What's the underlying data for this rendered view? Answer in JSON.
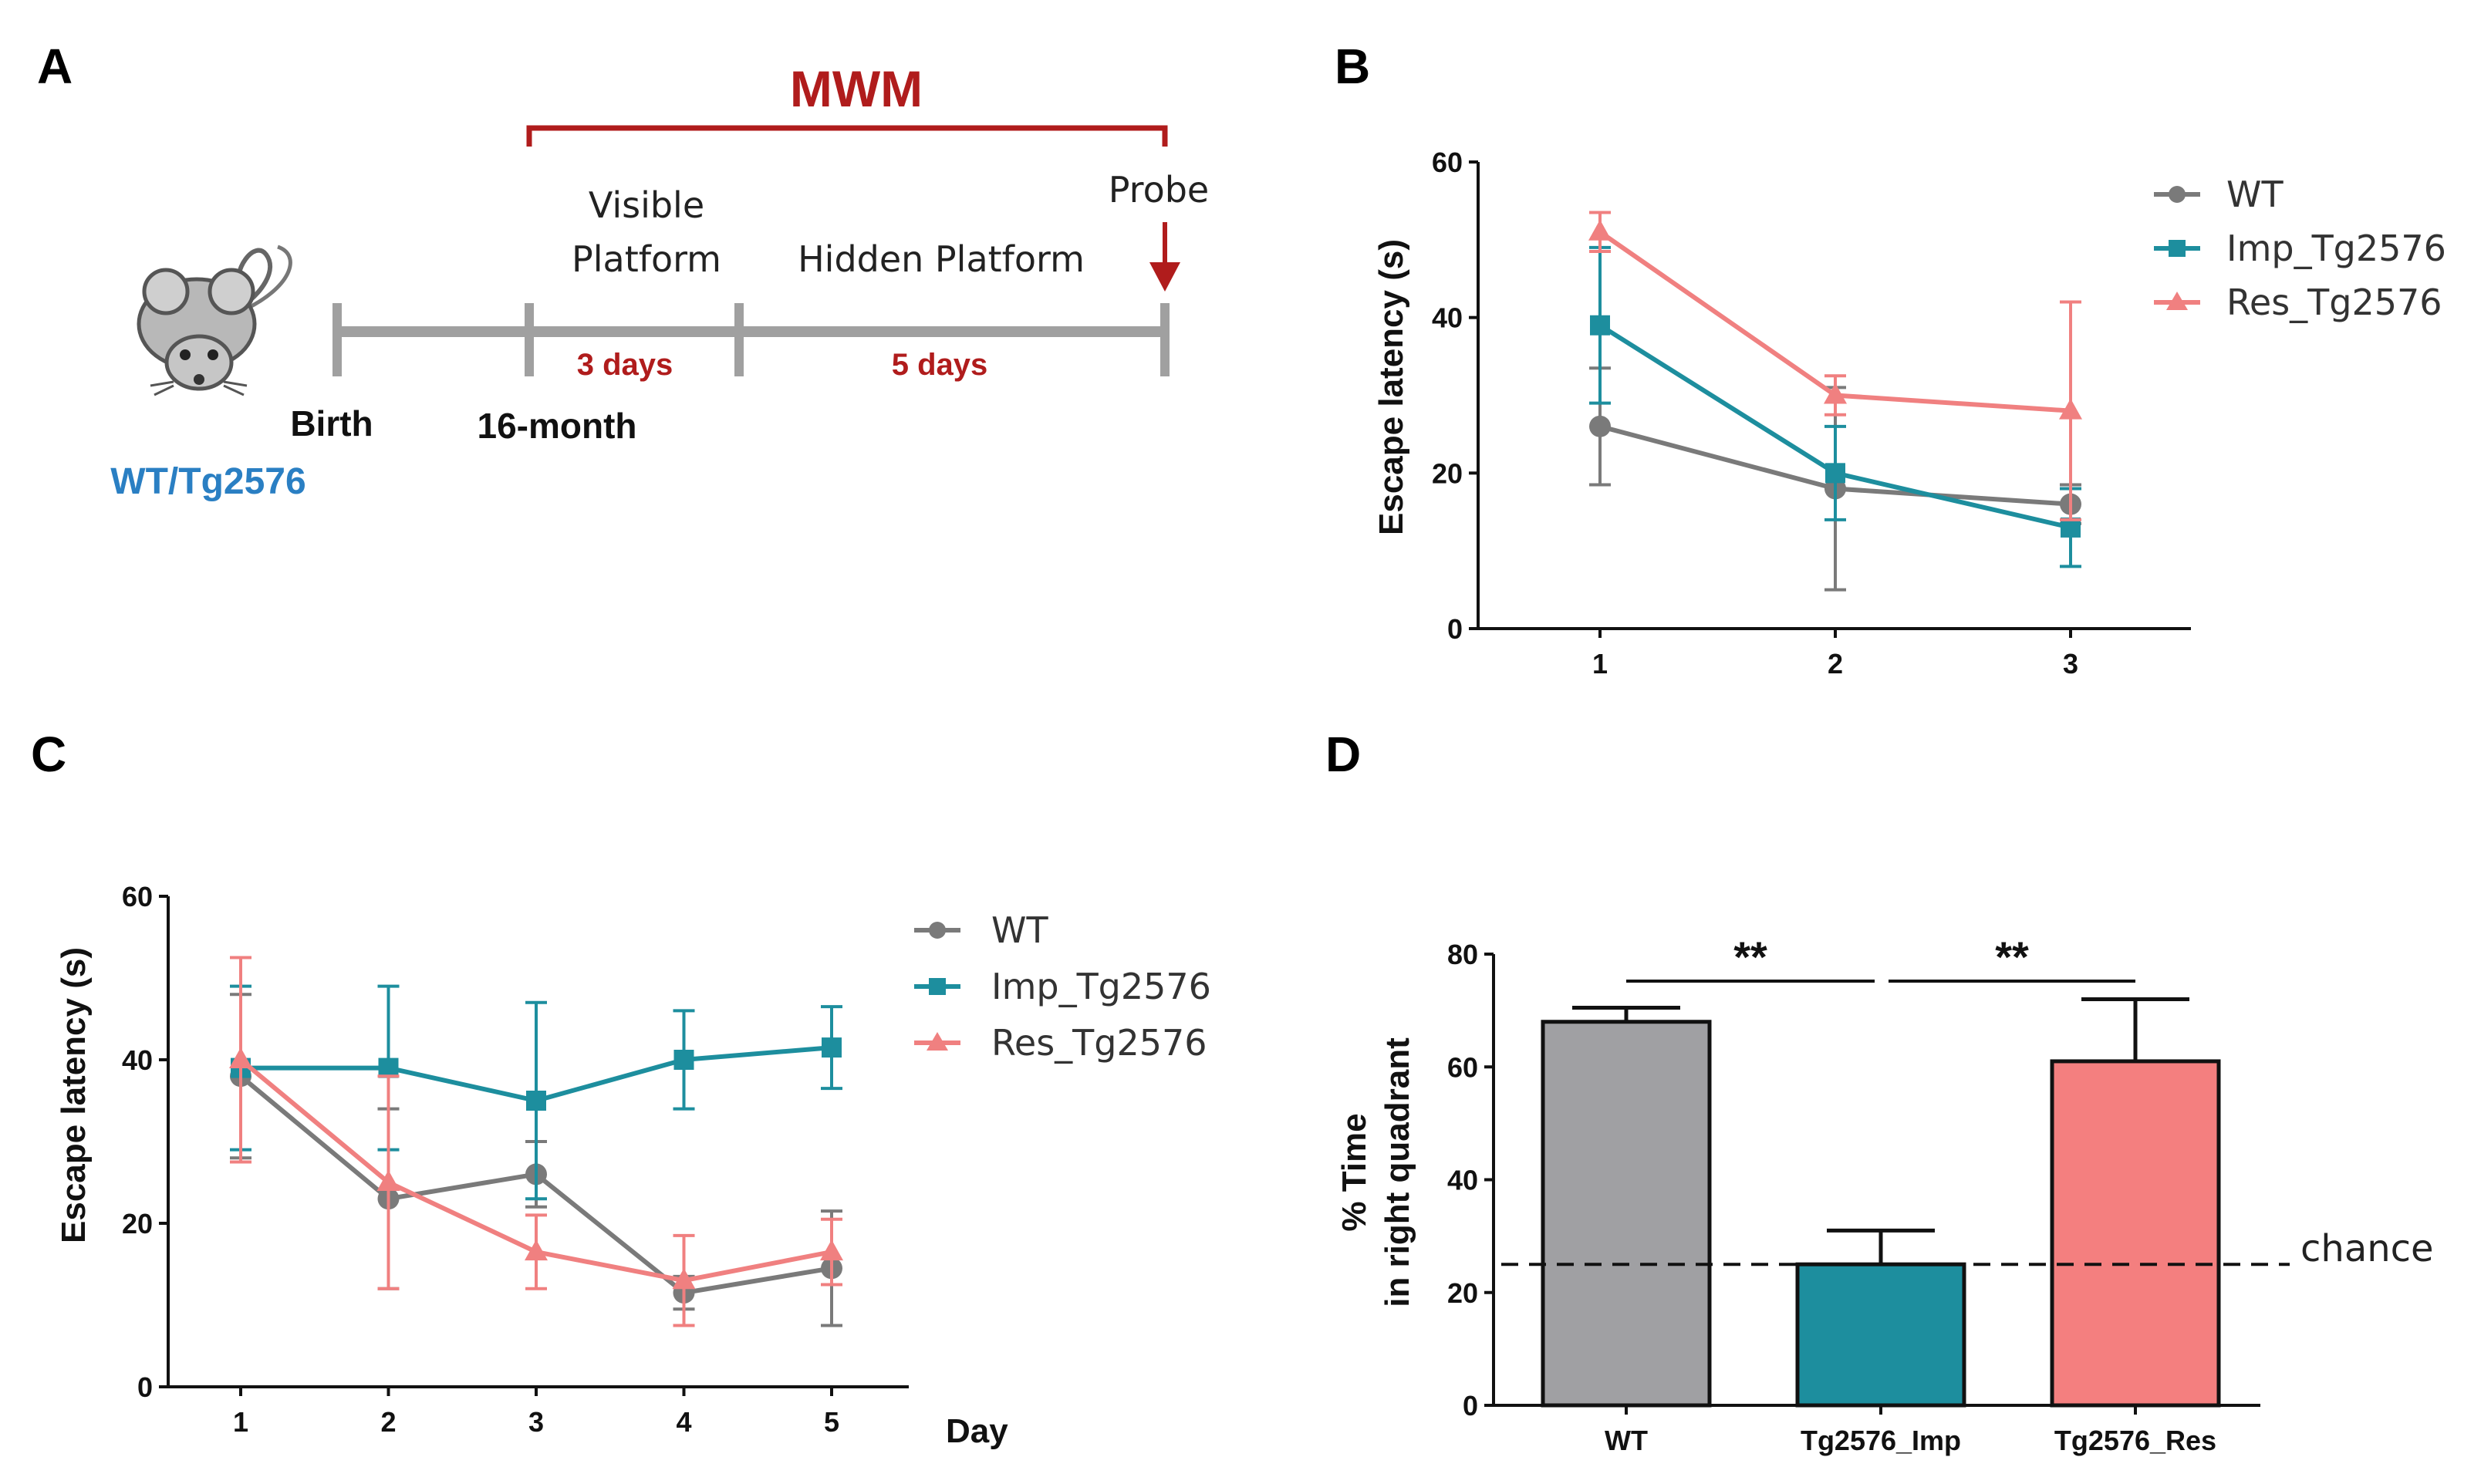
{
  "panels": {
    "A": {
      "letter": "A",
      "title": "MWM",
      "group_label": "WT/Tg2576",
      "birth_label": "Birth",
      "age_label": "16-month",
      "visible_label_1": "Visible",
      "visible_label_2": "Platform",
      "hidden_label": "Hidden Platform",
      "probe_label": "Probe",
      "visible_duration": "3 days",
      "hidden_duration": "5 days",
      "colors": {
        "timeline": "#a0a0a0",
        "accent": "#b01c1c",
        "group": "#2a7fc3"
      },
      "icon": "mouse-icon"
    },
    "B": {
      "letter": "B"
    },
    "C": {
      "letter": "C"
    },
    "D": {
      "letter": "D"
    }
  },
  "chart_data": [
    {
      "id": "B",
      "type": "line",
      "x": [
        1,
        2,
        3
      ],
      "xlabel": "",
      "ylabel": "Escape latency (s)",
      "ylim": [
        0,
        60
      ],
      "yticks": [
        0,
        20,
        40,
        60
      ],
      "legend_position": "top-right",
      "series": [
        {
          "name": "WT",
          "color": "#7a7a7a",
          "marker": "circle",
          "values": [
            26,
            18,
            16
          ],
          "errors": [
            7.5,
            13,
            2.5
          ]
        },
        {
          "name": "Imp_Tg2576",
          "color": "#1d8e9e",
          "marker": "square",
          "values": [
            39,
            20,
            13
          ],
          "errors": [
            10,
            6,
            5
          ]
        },
        {
          "name": "Res_Tg2576",
          "color": "#f08080",
          "marker": "triangle",
          "values": [
            51,
            30,
            28
          ],
          "errors": [
            2.5,
            2.5,
            14
          ]
        }
      ]
    },
    {
      "id": "C",
      "type": "line",
      "x": [
        1,
        2,
        3,
        4,
        5
      ],
      "xlabel": "Day",
      "ylabel": "Escape latency (s)",
      "ylim": [
        0,
        60
      ],
      "yticks": [
        0,
        20,
        40,
        60
      ],
      "legend_position": "top-right",
      "series": [
        {
          "name": "WT",
          "color": "#7a7a7a",
          "marker": "circle",
          "values": [
            38,
            23,
            26,
            11.5,
            14.5
          ],
          "errors": [
            10,
            11,
            4,
            2,
            7
          ]
        },
        {
          "name": "Imp_Tg2576",
          "color": "#1d8e9e",
          "marker": "square",
          "values": [
            39,
            39,
            35,
            40,
            41.5
          ],
          "errors": [
            10,
            10,
            12,
            6,
            5
          ]
        },
        {
          "name": "Res_Tg2576",
          "color": "#f08080",
          "marker": "triangle",
          "values": [
            40,
            25,
            16.5,
            13,
            16.5
          ],
          "errors": [
            12.5,
            13,
            4.5,
            5.5,
            4
          ]
        }
      ]
    },
    {
      "id": "D",
      "type": "bar",
      "categories": [
        "WT",
        "Tg2576_Imp",
        "Tg2576_Res"
      ],
      "values": [
        68,
        25,
        61
      ],
      "errors": [
        2.5,
        6,
        11
      ],
      "colors": [
        "#a0a0a3",
        "#1d8e9e",
        "#f47f7f"
      ],
      "ylabel_line1": "% Time",
      "ylabel_line2": "in right quadrant",
      "ylim": [
        0,
        80
      ],
      "yticks": [
        0,
        20,
        40,
        60,
        80
      ],
      "chance_level": 25,
      "chance_label": "chance",
      "significance": [
        {
          "from": 0,
          "to": 1,
          "label": "**"
        },
        {
          "from": 1,
          "to": 2,
          "label": "**"
        }
      ]
    }
  ]
}
